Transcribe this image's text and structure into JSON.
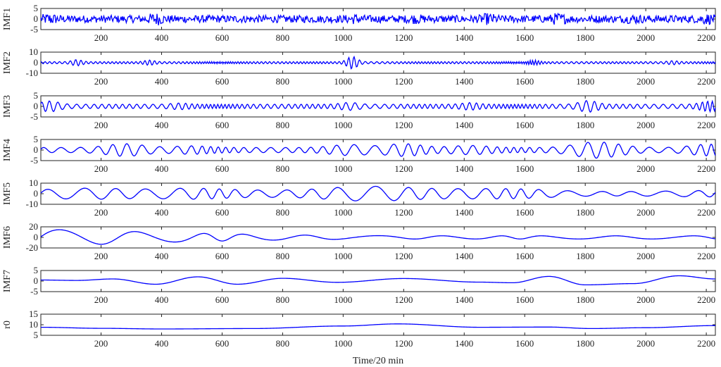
{
  "chart_data": {
    "type": "line",
    "xlabel": "Time/20 min",
    "xlim": [
      1,
      2230
    ],
    "xticks": [
      200,
      400,
      600,
      800,
      1000,
      1200,
      1400,
      1600,
      1800,
      2000,
      2200
    ],
    "line_color": "#0000ff",
    "panels": [
      {
        "name": "IMF1",
        "ylim": [
          -5,
          5
        ],
        "yticks": [
          -5,
          0,
          5
        ],
        "kind": "noise",
        "noise_amp": 1.1,
        "bursts": [
          [
            30,
            1.8
          ],
          [
            380,
            2.0
          ],
          [
            1040,
            1.6
          ],
          [
            1240,
            1.5
          ],
          [
            1480,
            1.8
          ],
          [
            1710,
            1.9
          ],
          [
            1960,
            1.5
          ],
          [
            2200,
            1.7
          ]
        ]
      },
      {
        "name": "IMF2",
        "ylim": [
          -10,
          10
        ],
        "yticks": [
          -10,
          0,
          10
        ],
        "kind": "osc",
        "period": 16,
        "base_amp": 1.0,
        "bursts": [
          [
            120,
            3.0
          ],
          [
            360,
            2.5
          ],
          [
            1030,
            6.0
          ],
          [
            1630,
            2.5
          ],
          [
            2090,
            2.0
          ]
        ]
      },
      {
        "name": "IMF3",
        "ylim": [
          -5,
          5
        ],
        "yticks": [
          -5,
          0,
          5
        ],
        "kind": "osc",
        "period": 28,
        "base_amp": 1.0,
        "bursts": [
          [
            30,
            2.6
          ],
          [
            460,
            1.6
          ],
          [
            1020,
            1.9
          ],
          [
            1420,
            1.8
          ],
          [
            1810,
            2.8
          ],
          [
            2210,
            2.5
          ]
        ]
      },
      {
        "name": "IMF4",
        "ylim": [
          -5,
          5
        ],
        "yticks": [
          -5,
          0,
          5
        ],
        "kind": "osc",
        "period": 58,
        "base_amp": 1.2,
        "bursts": [
          [
            280,
            3.0
          ],
          [
            500,
            2.0
          ],
          [
            1020,
            2.6
          ],
          [
            1200,
            3.0
          ],
          [
            1420,
            2.2
          ],
          [
            1810,
            3.0
          ],
          [
            1880,
            2.6
          ],
          [
            2210,
            2.8
          ]
        ]
      },
      {
        "name": "IMF5",
        "ylim": [
          -10,
          10
        ],
        "yticks": [
          -10,
          0,
          10
        ],
        "kind": "osc",
        "period": 115,
        "base_amp": 2.0,
        "bursts": [
          [
            80,
            4.0
          ],
          [
            230,
            4.0
          ],
          [
            500,
            5.0
          ],
          [
            760,
            3.0
          ],
          [
            1020,
            5.0
          ],
          [
            1160,
            5.0
          ],
          [
            1400,
            4.0
          ],
          [
            1590,
            4.0
          ],
          [
            2200,
            3.0
          ]
        ]
      },
      {
        "name": "IMF6",
        "ylim": [
          -20,
          20
        ],
        "yticks": [
          -20,
          0,
          20
        ],
        "kind": "osc",
        "period": 270,
        "base_amp": 3.0,
        "bursts": [
          [
            10,
            14.0
          ],
          [
            450,
            4.0
          ],
          [
            560,
            5.0
          ]
        ]
      },
      {
        "name": "IMF7",
        "ylim": [
          -5,
          5
        ],
        "yticks": [
          -5,
          0,
          5
        ],
        "kind": "keys",
        "keys": [
          [
            1,
            0.5
          ],
          [
            120,
            0.3
          ],
          [
            240,
            1.0
          ],
          [
            380,
            -1.5
          ],
          [
            520,
            2.0
          ],
          [
            650,
            -1.5
          ],
          [
            800,
            1.3
          ],
          [
            980,
            -0.6
          ],
          [
            1200,
            1.2
          ],
          [
            1450,
            -0.5
          ],
          [
            1560,
            -0.8
          ],
          [
            1680,
            2.2
          ],
          [
            1800,
            -1.8
          ],
          [
            1960,
            -1.2
          ],
          [
            2110,
            2.5
          ],
          [
            2230,
            1.0
          ]
        ]
      },
      {
        "name": "r0",
        "ylim": [
          5,
          15
        ],
        "yticks": [
          5,
          10,
          15
        ],
        "kind": "keys",
        "keys": [
          [
            1,
            8.8
          ],
          [
            200,
            8.3
          ],
          [
            400,
            8.0
          ],
          [
            700,
            8.2
          ],
          [
            1000,
            9.4
          ],
          [
            1180,
            10.4
          ],
          [
            1450,
            8.8
          ],
          [
            1680,
            8.9
          ],
          [
            1820,
            8.2
          ],
          [
            2000,
            8.6
          ],
          [
            2230,
            9.6
          ]
        ]
      }
    ]
  }
}
